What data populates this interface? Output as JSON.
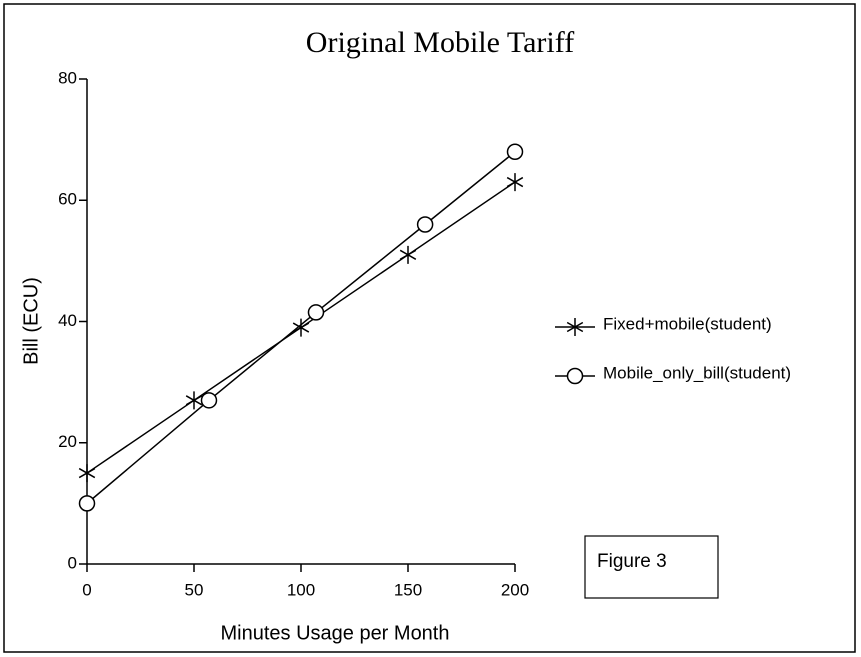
{
  "chart_data": {
    "type": "line",
    "title": "Original  Mobile Tariff",
    "x_label": "Minutes Usage per Month",
    "y_label": "Bill (ECU)",
    "annotation": "Figure 3",
    "series": [
      {
        "name": "Fixed+mobile(student)",
        "marker": "star",
        "color": "#000000",
        "x": [
          0,
          50,
          100,
          150,
          200
        ],
        "values": [
          15,
          27,
          39,
          51,
          63
        ]
      },
      {
        "name": "Mobile_only_bill(student)",
        "marker": "circle",
        "color": "#000000",
        "x": [
          0,
          57,
          107,
          158,
          200
        ],
        "values": [
          10,
          27,
          41.5,
          56,
          68
        ]
      }
    ],
    "xlim": [
      0,
      200
    ],
    "xticks": [
      0,
      50,
      100,
      150,
      200
    ],
    "ylim": [
      0,
      80
    ],
    "yticks": [
      0,
      20,
      40,
      60,
      80
    ]
  }
}
